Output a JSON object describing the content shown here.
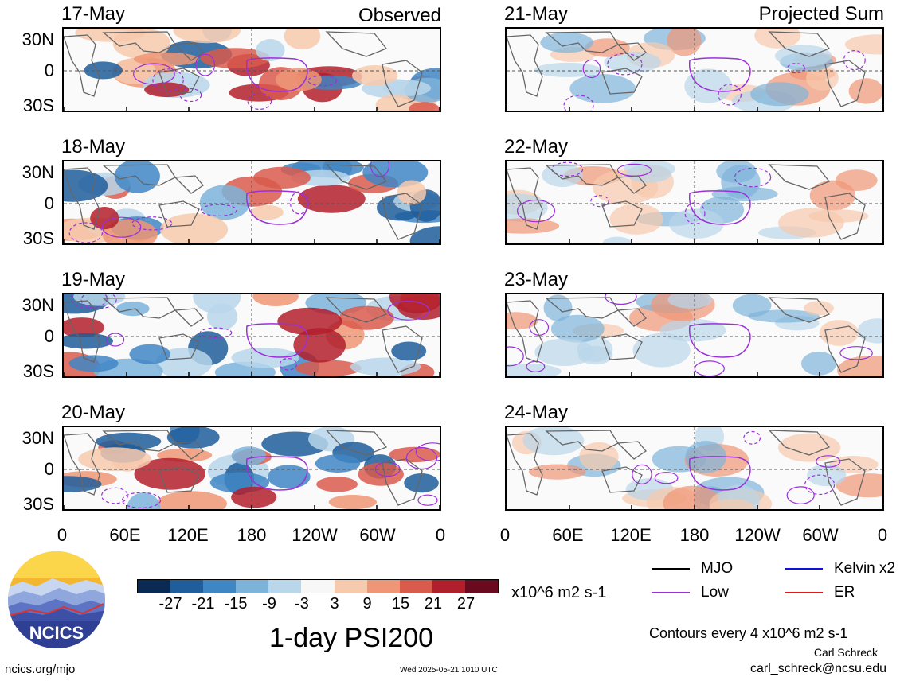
{
  "left_column_tag": "Observed",
  "right_column_tag": "Projected Sum",
  "panels_left": [
    {
      "date": "17-May"
    },
    {
      "date": "18-May"
    },
    {
      "date": "19-May"
    },
    {
      "date": "20-May"
    }
  ],
  "panels_right": [
    {
      "date": "21-May"
    },
    {
      "date": "22-May"
    },
    {
      "date": "23-May"
    },
    {
      "date": "24-May"
    }
  ],
  "y_ticks": [
    "30N",
    "0",
    "30S"
  ],
  "x_ticks": [
    "0",
    "60E",
    "120E",
    "180",
    "120W",
    "60W",
    "0"
  ],
  "colorbar": {
    "labels": [
      "-27",
      "-21",
      "-15",
      "-9",
      "-3",
      "3",
      "9",
      "15",
      "21",
      "27"
    ],
    "colors": [
      "#0a2a55",
      "#1f5d9b",
      "#3f86c4",
      "#7db3da",
      "#b9d6ea",
      "#f7f7f7",
      "#f7c9ad",
      "#ef9676",
      "#d95b4c",
      "#b21f2c",
      "#6a0a1f"
    ],
    "units": "x10^6 m2 s-1"
  },
  "title": "1-day PSI200",
  "legend": [
    {
      "label": "MJO",
      "color": "#000000"
    },
    {
      "label": "Kelvin x2",
      "color": "#1010dd"
    },
    {
      "label": "Low",
      "color": "#9b30d9"
    },
    {
      "label": "ER",
      "color": "#e01a1a"
    }
  ],
  "contour_note": "Contours every 4 x10^6 m2 s-1",
  "author": "Carl Schreck",
  "email": "carl_schreck@ncsu.edu",
  "site": "ncics.org/mjo",
  "timestamp": "Wed 2025-05-21 1010 UTC",
  "logo_text": "NCICS"
}
